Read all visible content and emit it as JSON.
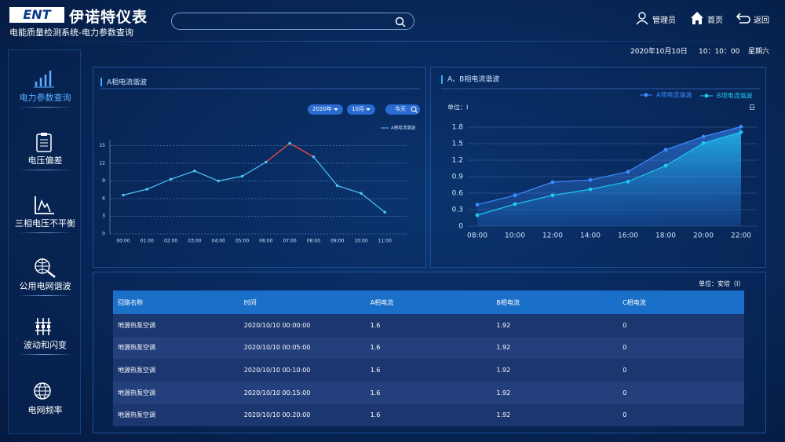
{
  "header": {
    "logo": "ENT",
    "brand": "伊诺特仪表",
    "subtitle": "电能质量检测系统-电力参数查询",
    "search_placeholder": "",
    "nav": [
      "管理员",
      "首页",
      "返回"
    ]
  },
  "datetime": {
    "date": "2020年10月10日",
    "time": "10：10：00",
    "weekday": "星期六"
  },
  "sidebar": {
    "items": [
      "电力参数查询",
      "电压偏差",
      "三相电压不平衡",
      "公用电网谐波",
      "波动和闪变",
      "电网频率"
    ],
    "active": 0
  },
  "chart_data": [
    {
      "type": "line",
      "title": "A相电流谐波",
      "filters": [
        "2020年",
        "10月",
        "今天"
      ],
      "categories": [
        "00:00",
        "01:00",
        "02:00",
        "03:00",
        "04:00",
        "05:00",
        "06:00",
        "07:00",
        "08:00",
        "09:00",
        "10:00",
        "11:00"
      ],
      "series": [
        {
          "name": "A相电流谐波",
          "color": "#4fc3f7",
          "values": [
            6.6,
            7.6,
            9.3,
            10.7,
            9.0,
            9.8,
            12.2,
            15.4,
            13.1,
            8.2,
            6.9,
            3.7
          ]
        }
      ],
      "highlight_index": 7,
      "highlight_color": "#e0453a",
      "ylim": [
        0,
        16
      ],
      "yticks": [
        0,
        3,
        6,
        9,
        12,
        15
      ],
      "grid": true
    },
    {
      "type": "area",
      "title": "A、B相电流谐波",
      "y_label": "单位：I",
      "x_label": "日",
      "categories": [
        "08:00",
        "10:00",
        "12:00",
        "14:00",
        "16:00",
        "18:00",
        "20:00",
        "22:00"
      ],
      "series": [
        {
          "name": "A项电流谐波",
          "color": "#3d8bff",
          "values": [
            0.39,
            0.56,
            0.8,
            0.84,
            0.99,
            1.39,
            1.63,
            1.81
          ]
        },
        {
          "name": "B项电流谐波",
          "color": "#1ec8f0",
          "values": [
            0.2,
            0.4,
            0.56,
            0.67,
            0.81,
            1.1,
            1.51,
            1.71
          ]
        }
      ],
      "ylim": [
        0,
        1.8
      ],
      "yticks": [
        0,
        0.3,
        0.6,
        0.9,
        1.2,
        1.5,
        1.8
      ],
      "grid": true
    }
  ],
  "table": {
    "unit": "单位：安培（I）",
    "columns": [
      "回路名称",
      "时间",
      "A相电流",
      "B相电流",
      "C相电流"
    ],
    "rows": [
      [
        "地源热泵空调",
        "2020/10/10 00:00:00",
        "1.6",
        "1.92",
        "0"
      ],
      [
        "地源热泵空调",
        "2020/10/10 00:05:00",
        "1.6",
        "1.92",
        "0"
      ],
      [
        "地源热泵空调",
        "2020/10/10 00:10:00",
        "1.6",
        "1.92",
        "0"
      ],
      [
        "地源热泵空调",
        "2020/10/10 00:15:00",
        "1.6",
        "1.92",
        "0"
      ],
      [
        "地源热泵空调",
        "2020/10/10 00:20:00",
        "1.6",
        "1.92",
        "0"
      ]
    ]
  }
}
